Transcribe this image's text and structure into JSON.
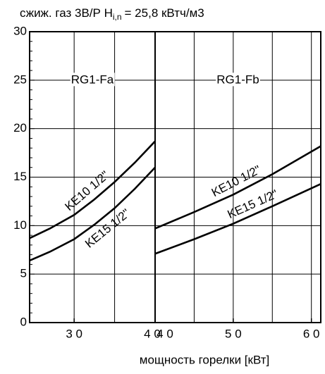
{
  "chart_data": [
    {
      "type": "line",
      "title": "сжиж. газ 3В/Р H",
      "title_subscript": "i,n",
      "title_rest": "= 25,8 кВтч/м3",
      "panel_label": "RG1-Fa",
      "xlim": [
        24.5,
        40
      ],
      "xticks": [
        {
          "value": 30,
          "label": "3 0"
        },
        {
          "value": 40,
          "label": "4 0"
        }
      ],
      "xgrid": [
        30,
        35
      ],
      "ylim": [
        0,
        30
      ],
      "yticks": [
        0,
        5,
        10,
        15,
        20,
        25,
        30
      ],
      "grid": true,
      "x": [
        24.5,
        27,
        30,
        32.5,
        35,
        37.5,
        40
      ],
      "series": [
        {
          "name": "KE10 1/2\"",
          "color": "#000000",
          "values": [
            8.7,
            9.7,
            11.1,
            12.7,
            14.5,
            16.5,
            18.7
          ]
        },
        {
          "name": "KE15 1/2\"",
          "color": "#000000",
          "values": [
            6.4,
            7.3,
            8.6,
            10.1,
            11.8,
            13.8,
            16.0
          ]
        }
      ]
    },
    {
      "type": "line",
      "panel_label": "RG1-Fb",
      "xlabel": "мощность горелки   [кВт]",
      "xlim": [
        40,
        61.2
      ],
      "xticks": [
        {
          "value": 40,
          "label": "4 0"
        },
        {
          "value": 50,
          "label": "5 0"
        },
        {
          "value": 60,
          "label": "6 0"
        }
      ],
      "xgrid": [
        45,
        50,
        55,
        60
      ],
      "ylim": [
        0,
        30
      ],
      "grid": true,
      "x": [
        40,
        45,
        50,
        55,
        61.2
      ],
      "series": [
        {
          "name": "KE10 1/2\"",
          "color": "#000000",
          "values": [
            9.7,
            11.4,
            13.2,
            15.3,
            18.2
          ]
        },
        {
          "name": "KE15 1/2\"",
          "color": "#000000",
          "values": [
            7.1,
            8.6,
            10.2,
            12.0,
            14.3
          ]
        }
      ]
    }
  ]
}
